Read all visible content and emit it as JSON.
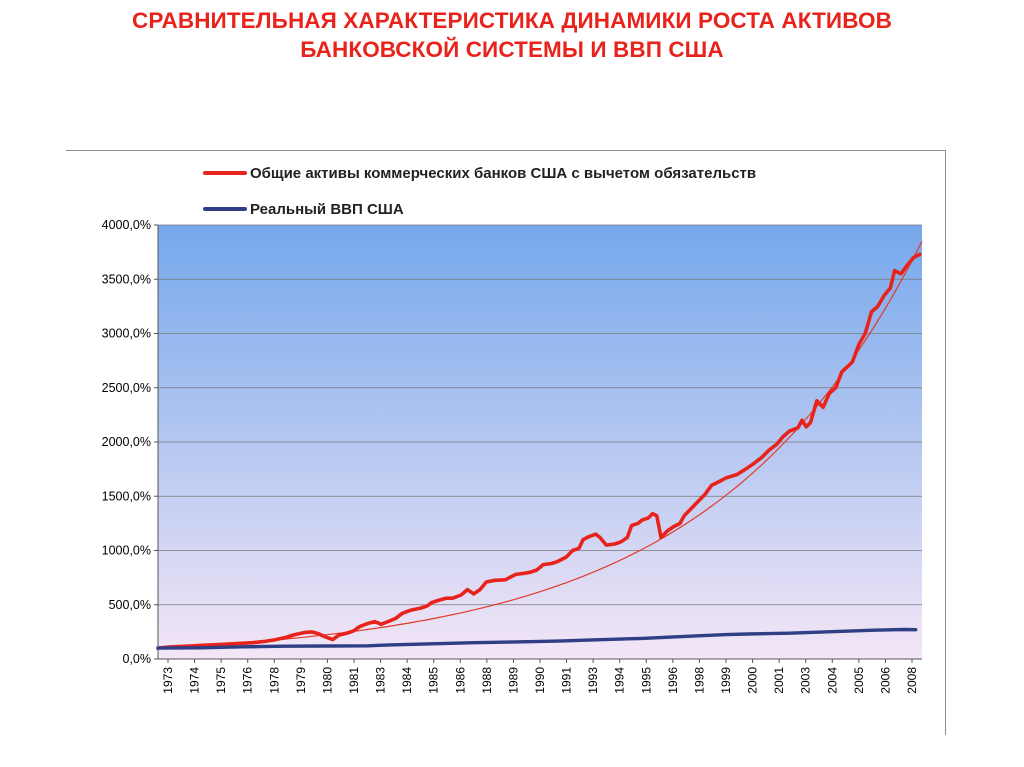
{
  "slide": {
    "title_line1": "СРАВНИТЕЛЬНАЯ ХАРАКТЕРИСТИКА ДИНАМИКИ РОСТА АКТИВОВ",
    "title_line2": "БАНКОВСКОЙ СИСТЕМЫ И ВВП США"
  },
  "colors": {
    "title": "#e8231c",
    "assets_series": "#e8231c",
    "trend_line": "#e23a2a",
    "gdp_series": "#2e3f86",
    "plot_top": "#75a8ec",
    "plot_bottom": "#f4e6f6"
  },
  "chart_data": {
    "type": "line",
    "legend": [
      {
        "label": "Общие активы коммерческих банков США с вычетом обязательств",
        "color": "#e8231c"
      },
      {
        "label": "Реальный ВВП США",
        "color": "#2e3f86"
      }
    ],
    "legend_position": "top",
    "ylim": [
      0,
      4000
    ],
    "y_ticks": [
      "0,0%",
      "500,0%",
      "1000,0%",
      "1500,0%",
      "2000,0%",
      "2500,0%",
      "3000,0%",
      "3500,0%",
      "4000,0%"
    ],
    "x_ticks": [
      "1973",
      "1974",
      "1975",
      "1976",
      "1978",
      "1979",
      "1980",
      "1981",
      "1983",
      "1984",
      "1985",
      "1986",
      "1988",
      "1989",
      "1990",
      "1991",
      "1993",
      "1994",
      "1995",
      "1996",
      "1998",
      "1999",
      "2000",
      "2001",
      "2003",
      "2004",
      "2005",
      "2006",
      "2008"
    ],
    "xlim": [
      1973,
      2009.3
    ],
    "grid": true,
    "series": [
      {
        "name": "Общие активы коммерческих банков США с вычетом обязательств",
        "points": [
          [
            1973.0,
            100
          ],
          [
            1973.5,
            110
          ],
          [
            1974.0,
            115
          ],
          [
            1974.5,
            120
          ],
          [
            1975.0,
            125
          ],
          [
            1975.5,
            130
          ],
          [
            1976.0,
            135
          ],
          [
            1976.5,
            140
          ],
          [
            1977.0,
            145
          ],
          [
            1977.5,
            150
          ],
          [
            1978.0,
            160
          ],
          [
            1978.5,
            175
          ],
          [
            1979.0,
            195
          ],
          [
            1979.5,
            225
          ],
          [
            1980.0,
            245
          ],
          [
            1980.3,
            250
          ],
          [
            1980.6,
            235
          ],
          [
            1981.0,
            200
          ],
          [
            1981.3,
            180
          ],
          [
            1981.6,
            220
          ],
          [
            1982.0,
            240
          ],
          [
            1982.3,
            260
          ],
          [
            1982.6,
            300
          ],
          [
            1983.0,
            330
          ],
          [
            1983.3,
            345
          ],
          [
            1983.6,
            320
          ],
          [
            1984.0,
            350
          ],
          [
            1984.3,
            375
          ],
          [
            1984.6,
            420
          ],
          [
            1985.0,
            450
          ],
          [
            1985.5,
            470
          ],
          [
            1985.8,
            490
          ],
          [
            1986.0,
            520
          ],
          [
            1986.4,
            545
          ],
          [
            1986.7,
            560
          ],
          [
            1987.0,
            560
          ],
          [
            1987.4,
            590
          ],
          [
            1987.7,
            640
          ],
          [
            1988.0,
            600
          ],
          [
            1988.3,
            640
          ],
          [
            1988.6,
            710
          ],
          [
            1989.0,
            725
          ],
          [
            1989.5,
            730
          ],
          [
            1989.8,
            760
          ],
          [
            1990.0,
            780
          ],
          [
            1990.4,
            790
          ],
          [
            1990.7,
            800
          ],
          [
            1991.0,
            820
          ],
          [
            1991.3,
            870
          ],
          [
            1991.7,
            880
          ],
          [
            1992.0,
            900
          ],
          [
            1992.4,
            940
          ],
          [
            1992.7,
            1000
          ],
          [
            1993.0,
            1020
          ],
          [
            1993.2,
            1100
          ],
          [
            1993.5,
            1130
          ],
          [
            1993.8,
            1150
          ],
          [
            1994.0,
            1120
          ],
          [
            1994.3,
            1050
          ],
          [
            1994.7,
            1060
          ],
          [
            1995.0,
            1080
          ],
          [
            1995.3,
            1120
          ],
          [
            1995.5,
            1230
          ],
          [
            1995.8,
            1250
          ],
          [
            1996.0,
            1280
          ],
          [
            1996.3,
            1300
          ],
          [
            1996.5,
            1340
          ],
          [
            1996.7,
            1320
          ],
          [
            1996.9,
            1120
          ],
          [
            1997.2,
            1180
          ],
          [
            1997.5,
            1220
          ],
          [
            1997.8,
            1250
          ],
          [
            1998.0,
            1320
          ],
          [
            1998.3,
            1380
          ],
          [
            1998.6,
            1440
          ],
          [
            1999.0,
            1520
          ],
          [
            1999.3,
            1600
          ],
          [
            1999.7,
            1640
          ],
          [
            2000.0,
            1670
          ],
          [
            2000.5,
            1700
          ],
          [
            2001.0,
            1760
          ],
          [
            2001.3,
            1800
          ],
          [
            2001.7,
            1860
          ],
          [
            2002.0,
            1920
          ],
          [
            2002.4,
            1980
          ],
          [
            2002.7,
            2050
          ],
          [
            2003.0,
            2100
          ],
          [
            2003.4,
            2130
          ],
          [
            2003.6,
            2200
          ],
          [
            2003.8,
            2140
          ],
          [
            2004.0,
            2180
          ],
          [
            2004.3,
            2380
          ],
          [
            2004.6,
            2320
          ],
          [
            2004.9,
            2450
          ],
          [
            2005.2,
            2500
          ],
          [
            2005.5,
            2650
          ],
          [
            2005.8,
            2700
          ],
          [
            2006.0,
            2740
          ],
          [
            2006.3,
            2900
          ],
          [
            2006.6,
            3000
          ],
          [
            2006.9,
            3200
          ],
          [
            2007.2,
            3250
          ],
          [
            2007.5,
            3350
          ],
          [
            2007.8,
            3420
          ],
          [
            2008.0,
            3580
          ],
          [
            2008.3,
            3550
          ],
          [
            2008.6,
            3630
          ],
          [
            2008.9,
            3700
          ],
          [
            2009.2,
            3730
          ]
        ]
      },
      {
        "name": "Реальный ВВП США",
        "points": [
          [
            1973.0,
            100
          ],
          [
            1975.0,
            103
          ],
          [
            1977.0,
            112
          ],
          [
            1979.0,
            118
          ],
          [
            1981.0,
            120
          ],
          [
            1983.0,
            122
          ],
          [
            1984.0,
            130
          ],
          [
            1986.0,
            140
          ],
          [
            1988.0,
            150
          ],
          [
            1990.0,
            158
          ],
          [
            1992.0,
            165
          ],
          [
            1994.0,
            178
          ],
          [
            1996.0,
            190
          ],
          [
            1998.0,
            208
          ],
          [
            2000.0,
            225
          ],
          [
            2001.0,
            230
          ],
          [
            2003.0,
            238
          ],
          [
            2005.0,
            252
          ],
          [
            2007.0,
            265
          ],
          [
            2008.5,
            272
          ],
          [
            2009.0,
            270
          ]
        ]
      }
    ],
    "trend": {
      "type": "exponential",
      "from": [
        1973.0,
        100
      ],
      "to": [
        2009.3,
        3850
      ]
    }
  }
}
